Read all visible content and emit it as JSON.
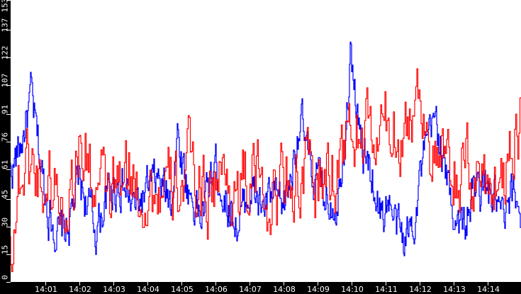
{
  "chart_data": {
    "type": "line",
    "title": "",
    "xlabel": "",
    "ylabel": "",
    "ylim": [
      0,
      153
    ],
    "grid": false,
    "legend": "none",
    "y_ticks": [
      0,
      15,
      30,
      45,
      61,
      76,
      91,
      107,
      122,
      137,
      153
    ],
    "x_ticks": [
      "14:01",
      "14:02",
      "14:03",
      "14:04",
      "14:05",
      "14:06",
      "14:07",
      "14:08",
      "14:09",
      "14:10",
      "14:11",
      "14:12",
      "14:13",
      "14:14"
    ],
    "x_range_minutes": [
      0,
      15
    ],
    "series": [
      {
        "name": "blue",
        "color": "#0000ff",
        "envelope_time_min": [
          0,
          0.3,
          0.6,
          0.9,
          1.1,
          1.4,
          1.7,
          2.0,
          2.2,
          2.5,
          2.8,
          3.2,
          3.6,
          4.0,
          4.3,
          4.7,
          4.9,
          5.2,
          5.6,
          6.0,
          6.3,
          6.7,
          7.0,
          7.4,
          7.7,
          8.0,
          8.2,
          8.5,
          8.8,
          9.0,
          9.3,
          9.6,
          9.8,
          10.0,
          10.3,
          10.6,
          10.9,
          11.1,
          11.3,
          11.6,
          11.9,
          12.0,
          12.2,
          12.5,
          12.8,
          13.0,
          13.3,
          13.6,
          13.9,
          14.2,
          14.5,
          14.8,
          15.0
        ],
        "envelope_mean": [
          60,
          75,
          100,
          60,
          40,
          25,
          30,
          55,
          45,
          28,
          45,
          55,
          40,
          48,
          55,
          45,
          80,
          50,
          35,
          65,
          45,
          30,
          50,
          40,
          45,
          40,
          55,
          90,
          60,
          55,
          45,
          45,
          80,
          125,
          70,
          60,
          35,
          45,
          30,
          22,
          40,
          55,
          70,
          90,
          55,
          40,
          28,
          50,
          50,
          45,
          30,
          48,
          40
        ],
        "amplitude": 10
      },
      {
        "name": "red",
        "color": "#ff0000",
        "envelope_time_min": [
          0,
          0.3,
          0.6,
          0.9,
          1.2,
          1.5,
          1.8,
          2.0,
          2.2,
          2.5,
          2.8,
          3.2,
          3.6,
          4.0,
          4.3,
          4.7,
          5.0,
          5.3,
          5.7,
          6.0,
          6.3,
          6.7,
          7.0,
          7.4,
          7.7,
          8.0,
          8.3,
          8.6,
          8.9,
          9.2,
          9.5,
          9.8,
          10.0,
          10.3,
          10.6,
          10.9,
          11.2,
          11.5,
          11.8,
          12.0,
          12.2,
          12.4,
          12.7,
          13.0,
          13.3,
          13.6,
          13.9,
          14.2,
          14.5,
          14.8,
          15.0
        ],
        "envelope_mean": [
          20,
          60,
          65,
          55,
          55,
          45,
          55,
          75,
          70,
          50,
          45,
          50,
          55,
          50,
          50,
          45,
          55,
          60,
          50,
          55,
          55,
          50,
          55,
          55,
          45,
          55,
          60,
          55,
          55,
          55,
          60,
          75,
          80,
          80,
          75,
          80,
          85,
          85,
          90,
          105,
          95,
          65,
          60,
          55,
          60,
          55,
          60,
          55,
          60,
          85,
          90
        ],
        "amplitude": 18
      }
    ]
  }
}
